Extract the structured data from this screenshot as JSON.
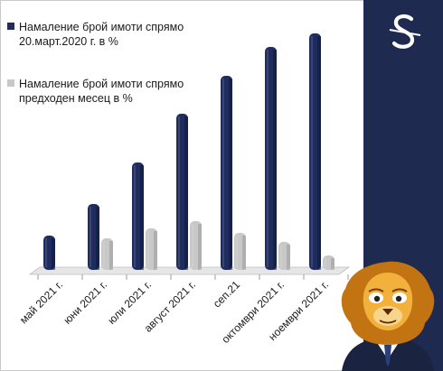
{
  "colors": {
    "series1": "#1f2d5e",
    "series2": "#c8c8c8",
    "panel": "#1e2a4f",
    "floor": "#e6e6e6"
  },
  "icons": {
    "logo": "stylized-s-logo-icon",
    "mascot": "lion-mascot-icon"
  },
  "chart_data": {
    "type": "bar",
    "title": "",
    "xlabel": "",
    "ylabel": "",
    "grid": false,
    "legend_position": "top-left",
    "categories": [
      "май 2021 г.",
      "юни 2021 г.",
      "юли 2021 г.",
      "август 2021 г.",
      "сеп.21",
      "октомври 2021 г.",
      "ноември 2021 г."
    ],
    "series": [
      {
        "name": "Намаление брой имоти спрямо 20.март.2020  г. в %",
        "values": [
          38,
          73,
          119,
          173,
          215,
          247,
          262
        ]
      },
      {
        "name": "Намаление брой имоти спрямо предходен месец в %",
        "values": [
          null,
          35,
          46,
          54,
          41,
          31,
          16
        ]
      }
    ],
    "ylim": [
      0,
      270
    ]
  }
}
